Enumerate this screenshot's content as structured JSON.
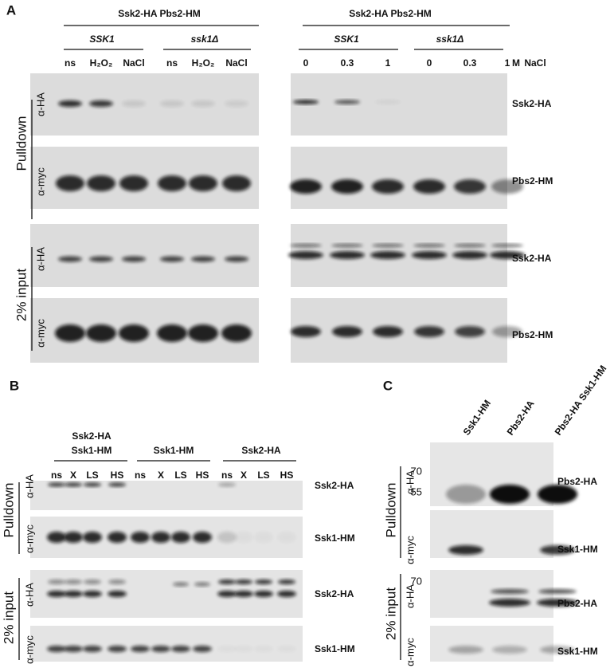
{
  "panel_a": {
    "label": "A",
    "left": {
      "header": "Ssk2-HA Pbs2-HM",
      "groups": [
        "SSK1",
        "ssk1Δ"
      ],
      "lanes": [
        "ns",
        "H₂O₂",
        "NaCl",
        "ns",
        "H₂O₂",
        "NaCl"
      ]
    },
    "right": {
      "header": "Ssk2-HA Pbs2-HM",
      "groups": [
        "SSK1",
        "ssk1Δ"
      ],
      "lanes": [
        "0",
        "0.3",
        "1",
        "0",
        "0.3",
        "1"
      ],
      "unit": "M",
      "treatment": "NaCl"
    },
    "sections": [
      "Pulldown",
      "2% input"
    ],
    "antibodies": [
      "α-HA",
      "α-myc",
      "α-HA",
      "α-myc"
    ],
    "row_labels": [
      "Ssk2-HA",
      "Pbs2-HM",
      "Ssk2-HA",
      "Pbs2-HM"
    ]
  },
  "panel_b": {
    "label": "B",
    "groups": [
      [
        "Ssk2-HA",
        "Ssk1-HM"
      ],
      [
        "Ssk1-HM"
      ],
      [
        "Ssk2-HA"
      ]
    ],
    "lanes": [
      "ns",
      "X",
      "LS",
      "HS",
      "ns",
      "X",
      "LS",
      "HS",
      "ns",
      "X",
      "LS",
      "HS"
    ],
    "sections": [
      "Pulldown",
      "2% input"
    ],
    "antibodies": [
      "α-HA",
      "α-myc",
      "α-HA",
      "α-myc"
    ],
    "row_labels": [
      "Ssk2-HA",
      "Ssk1-HM",
      "Ssk2-HA",
      "Ssk1-HM"
    ]
  },
  "panel_c": {
    "label": "C",
    "lanes": [
      "Ssk1-HM",
      "Pbs2-HA",
      "Pbs2-HA Ssk1-HM"
    ],
    "markers": [
      "70",
      "55",
      "70"
    ],
    "sections": [
      "Pulldown",
      "2% input"
    ],
    "antibodies": [
      "α-HA",
      "α-myc",
      "α-HA",
      "α-myc"
    ],
    "row_labels": [
      "Pbs2-HA",
      "Ssk1-HM",
      "Pbs2-HA",
      "Ssk1-HM"
    ]
  }
}
